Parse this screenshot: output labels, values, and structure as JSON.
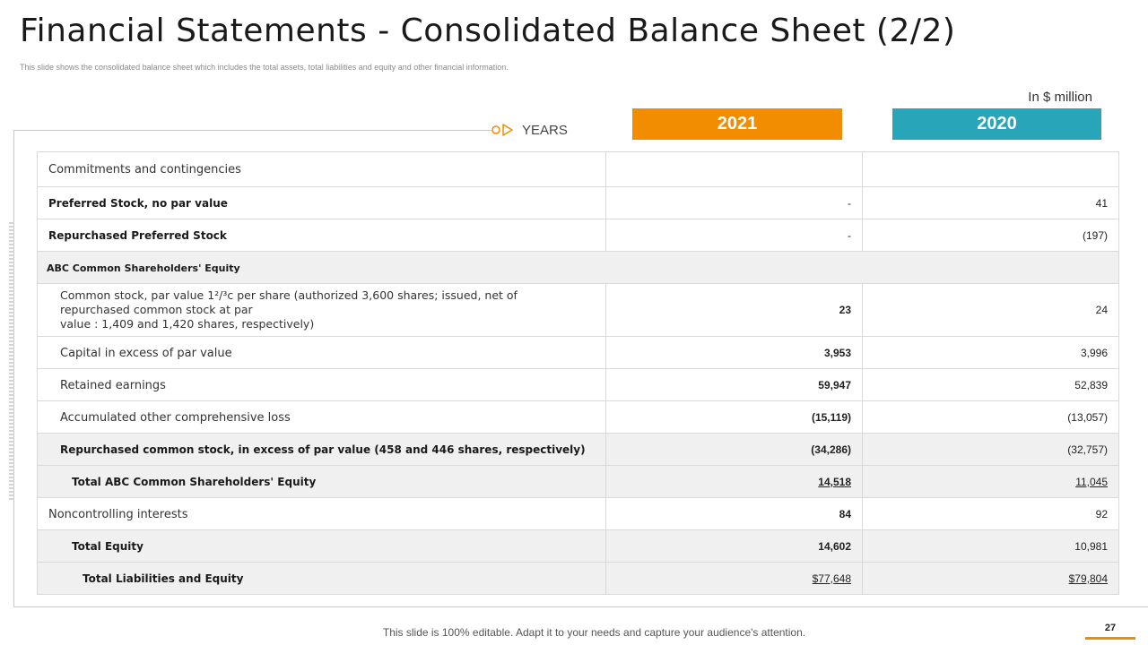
{
  "header": {
    "title": "Financial Statements - Consolidated Balance Sheet (2/2)",
    "subtitle": "This slide shows the consolidated balance sheet which includes the total assets, total liabilities and equity and other financial information.",
    "unit_label": "In $ million"
  },
  "years": {
    "axis_label": "YEARS",
    "col_2021": "2021",
    "col_2020": "2020"
  },
  "colors": {
    "accent_orange": "#f28c00",
    "accent_teal": "#28a5b8",
    "row_gray": "#f0f0f0"
  },
  "table": {
    "rows": [
      {
        "label": "Commitments and contingencies",
        "v2021": "",
        "v2020": ""
      },
      {
        "label": "Preferred Stock, no par value",
        "v2021": "-",
        "v2020": "41"
      },
      {
        "label": "Repurchased Preferred Stock",
        "v2021": "-",
        "v2020": "(197)"
      },
      {
        "label": "ABC Common Shareholders' Equity"
      },
      {
        "label_line1": "Common stock, par value 1²/³c per share (authorized 3,600 shares; issued, net of",
        "label_line2": "repurchased  common stock at par",
        "label_line3": "value : 1,409 and 1,420 shares, respectively)",
        "v2021": "23",
        "v2020": "24"
      },
      {
        "label": "Capital in excess  of par value",
        "v2021": "3,953",
        "v2020": "3,996"
      },
      {
        "label": "Retained earnings",
        "v2021": "59,947",
        "v2020": "52,839"
      },
      {
        "label": "Accumulated other comprehensive  loss",
        "v2021": "(15,119)",
        "v2020": "(13,057)"
      },
      {
        "label": "Repurchased common  stock, in excess  of par value (458 and 446 shares, respectively)",
        "v2021": "(34,286)",
        "v2020": "(32,757)"
      },
      {
        "label": "Total ABC Common  Shareholders' Equity",
        "v2021": "14,518",
        "v2020": "11,045"
      },
      {
        "label": "Noncontrolling interests",
        "v2021": "84",
        "v2020": "92"
      },
      {
        "label": "Total Equity",
        "v2021": "14,602",
        "v2020": "10,981"
      },
      {
        "label": "Total Liabilities and Equity",
        "v2021": "$77,648",
        "v2020": "$79,804"
      }
    ]
  },
  "footer": {
    "text": "This slide is 100% editable. Adapt it to your needs and capture your audience's attention.",
    "page_number": "27"
  }
}
